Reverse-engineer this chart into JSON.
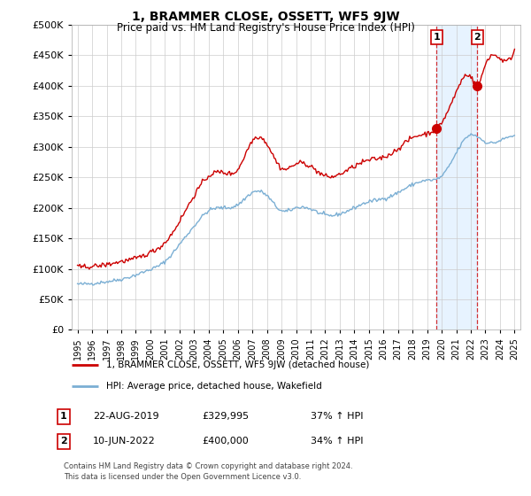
{
  "title": "1, BRAMMER CLOSE, OSSETT, WF5 9JW",
  "subtitle": "Price paid vs. HM Land Registry's House Price Index (HPI)",
  "background_color": "#ffffff",
  "grid_color": "#cccccc",
  "sale1_date": "22-AUG-2019",
  "sale1_price": 329995,
  "sale1_pct": "37%",
  "sale2_date": "10-JUN-2022",
  "sale2_price": 400000,
  "sale2_pct": "34%",
  "red_color": "#cc0000",
  "blue_color": "#7bafd4",
  "shade_color": "#ddeeff",
  "legend_label1": "1, BRAMMER CLOSE, OSSETT, WF5 9JW (detached house)",
  "legend_label2": "HPI: Average price, detached house, Wakefield",
  "footer": "Contains HM Land Registry data © Crown copyright and database right 2024.\nThis data is licensed under the Open Government Licence v3.0.",
  "ylim": [
    0,
    500000
  ],
  "yticks": [
    0,
    50000,
    100000,
    150000,
    200000,
    250000,
    300000,
    350000,
    400000,
    450000,
    500000
  ],
  "sale1_x": 2019.65,
  "sale2_x": 2022.45
}
